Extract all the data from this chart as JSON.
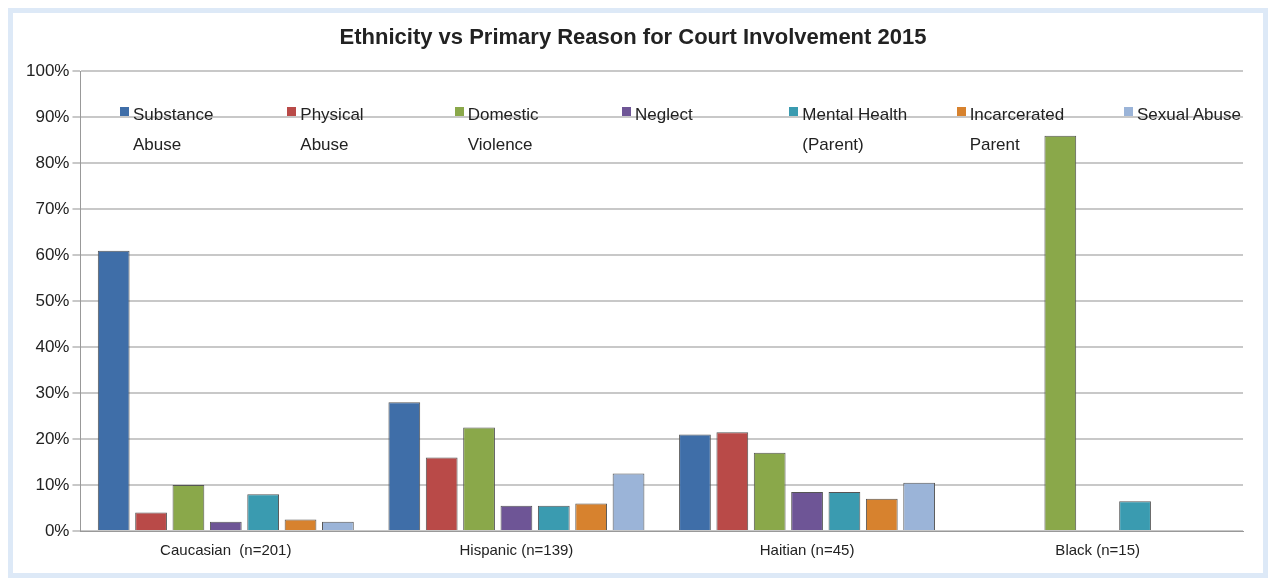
{
  "chart_data": {
    "type": "bar",
    "title": "Ethnicity vs Primary Reason for Court Involvement 2015",
    "categories": [
      "Caucasian  (n=201)",
      "Hispanic (n=139)",
      "Haitian (n=45)",
      "Black (n=15)"
    ],
    "series": [
      {
        "name": "Substance Abuse",
        "color": "#3f6ea8",
        "values": [
          61,
          28,
          21,
          0
        ]
      },
      {
        "name": "Physical Abuse",
        "color": "#b94a48",
        "values": [
          4,
          16,
          21.5,
          0
        ]
      },
      {
        "name": "Domestic Violence",
        "color": "#8aa84a",
        "values": [
          10,
          22.5,
          17,
          86
        ]
      },
      {
        "name": "Neglect",
        "color": "#6e5596",
        "values": [
          2,
          5.5,
          8.5,
          0
        ]
      },
      {
        "name": "Mental Health (Parent)",
        "color": "#3a9bb0",
        "values": [
          8,
          5.5,
          8.5,
          6.5
        ]
      },
      {
        "name": "Incarcerated Parent",
        "color": "#d7822e",
        "values": [
          2.5,
          6,
          7,
          0
        ]
      },
      {
        "name": "Sexual Abuse",
        "color": "#9bb4d8",
        "values": [
          2,
          12.5,
          10.5,
          0
        ]
      }
    ],
    "ylim": [
      0,
      100
    ],
    "yticks": [
      {
        "value": 0,
        "label": "0%"
      },
      {
        "value": 10,
        "label": "10%"
      },
      {
        "value": 20,
        "label": "20%"
      },
      {
        "value": 30,
        "label": "30%"
      },
      {
        "value": 40,
        "label": "40%"
      },
      {
        "value": 50,
        "label": "50%"
      },
      {
        "value": 60,
        "label": "60%"
      },
      {
        "value": 70,
        "label": "70%"
      },
      {
        "value": 80,
        "label": "80%"
      },
      {
        "value": 90,
        "label": "90%"
      },
      {
        "value": 100,
        "label": "100%"
      }
    ],
    "grid": "y",
    "legend": "top"
  }
}
